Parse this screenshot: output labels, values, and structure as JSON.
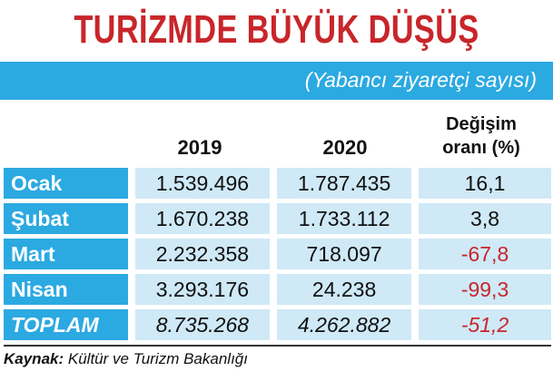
{
  "title": "TURİZMDE BÜYÜK DÜŞÜŞ",
  "subtitle": "(Yabancı ziyaretçi sayısı)",
  "source_label": "Kaynak:",
  "source_text": "Kültür ve Turizm Bakanlığı",
  "colors": {
    "title": "#c8262a",
    "bar": "#2ba9e1",
    "cell": "#cfe9f7",
    "negative": "#c8262a"
  },
  "chart_data": {
    "type": "table",
    "title": "TURİZMDE BÜYÜK DÜŞÜŞ",
    "subtitle": "(Yabancı ziyaretçi sayısı)",
    "columns": [
      "",
      "2019",
      "2020",
      "Değişim oranı (%)"
    ],
    "rate_header_line1": "Değişim",
    "rate_header_line2": "oranı (%)",
    "rows": [
      {
        "label": "Ocak",
        "y2019": "1.539.496",
        "y2020": "1.787.435",
        "rate": "16,1",
        "negative": false
      },
      {
        "label": "Şubat",
        "y2019": "1.670.238",
        "y2020": "1.733.112",
        "rate": "3,8",
        "negative": false
      },
      {
        "label": "Mart",
        "y2019": "2.232.358",
        "y2020": "718.097",
        "rate": "-67,8",
        "negative": true
      },
      {
        "label": "Nisan",
        "y2019": "3.293.176",
        "y2020": "24.238",
        "rate": "-99,3",
        "negative": true
      },
      {
        "label": "TOPLAM",
        "y2019": "8.735.268",
        "y2020": "4.262.882",
        "rate": "-51,2",
        "negative": true
      }
    ]
  }
}
